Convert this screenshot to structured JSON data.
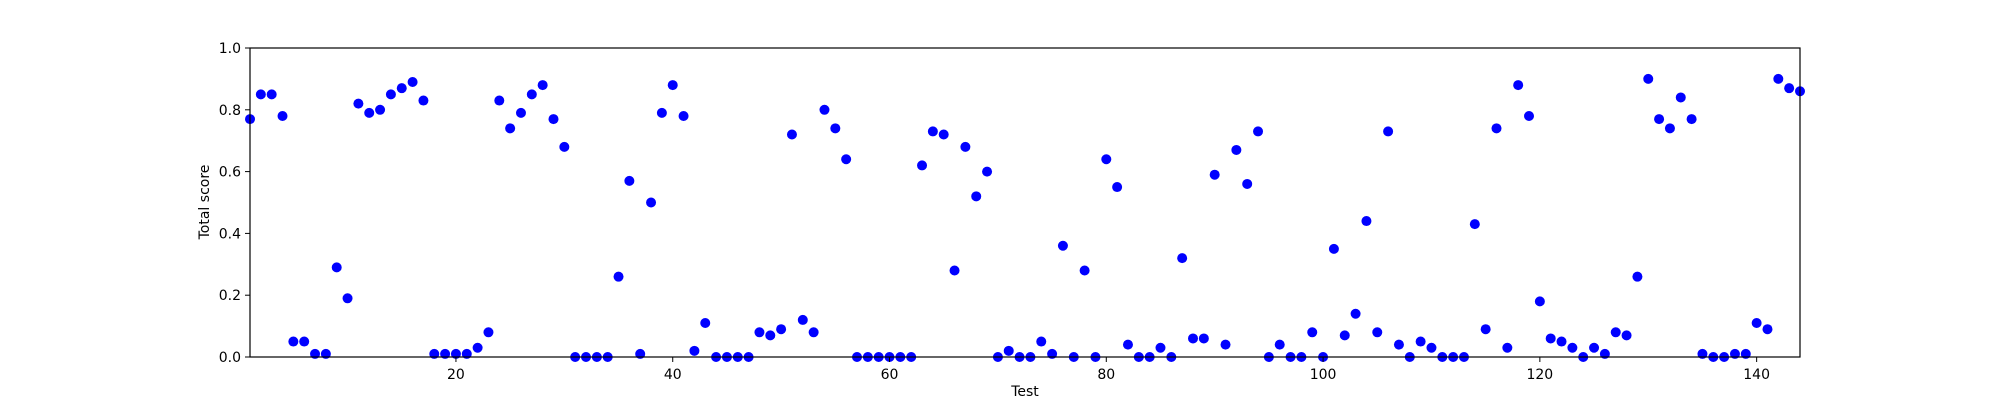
{
  "chart_data": {
    "type": "scatter",
    "title": "",
    "xlabel": "Test",
    "ylabel": "Total score",
    "xlim": [
      1,
      144
    ],
    "ylim": [
      0.0,
      1.0
    ],
    "xticks": [
      20,
      40,
      60,
      80,
      100,
      120,
      140
    ],
    "xtick_labels": [
      "20",
      "40",
      "60",
      "80",
      "100",
      "120",
      "140"
    ],
    "yticks": [
      0.0,
      0.2,
      0.4,
      0.6,
      0.8,
      1.0
    ],
    "ytick_labels": [
      "0.0",
      "0.2",
      "0.4",
      "0.6",
      "0.8",
      "1.0"
    ],
    "grid": false,
    "legend": false,
    "marker_color": "#0000ff",
    "series": [
      {
        "x": [
          1,
          2,
          3,
          4,
          5,
          6,
          7,
          8,
          9,
          10,
          11,
          12,
          13,
          14,
          15,
          16,
          17,
          18,
          19,
          20,
          21,
          22,
          23,
          24,
          25,
          26,
          27,
          28,
          29,
          30,
          31,
          32,
          33,
          34,
          35,
          36,
          37,
          38,
          39,
          40,
          41,
          42,
          43,
          44,
          45,
          46,
          47,
          48,
          49,
          50,
          51,
          52,
          53,
          54,
          55,
          56,
          57,
          58,
          59,
          60,
          61,
          62,
          63,
          64,
          65,
          66,
          67,
          68,
          69,
          70,
          71,
          72,
          73,
          74,
          75,
          76,
          77,
          78,
          79,
          80,
          81,
          82,
          83,
          84,
          85,
          86,
          87,
          88,
          89,
          90,
          91,
          92,
          93,
          94,
          95,
          96,
          97,
          98,
          99,
          100,
          101,
          102,
          103,
          104,
          105,
          106,
          107,
          108,
          109,
          110,
          111,
          112,
          113,
          114,
          115,
          116,
          117,
          118,
          119,
          120,
          121,
          122,
          123,
          124,
          125,
          126,
          127,
          128,
          129,
          130,
          131,
          132,
          133,
          134,
          135,
          136,
          137,
          138,
          139,
          140,
          141,
          142,
          143,
          144
        ],
        "y": [
          0.77,
          0.85,
          0.85,
          0.78,
          0.05,
          0.05,
          0.01,
          0.01,
          0.29,
          0.19,
          0.82,
          0.79,
          0.8,
          0.85,
          0.87,
          0.89,
          0.83,
          0.01,
          0.01,
          0.01,
          0.01,
          0.03,
          0.08,
          0.83,
          0.74,
          0.79,
          0.85,
          0.88,
          0.77,
          0.68,
          0.0,
          0.0,
          0.0,
          0.0,
          0.26,
          0.57,
          0.01,
          0.5,
          0.79,
          0.88,
          0.78,
          0.02,
          0.11,
          0.0,
          0.0,
          0.0,
          0.0,
          0.08,
          0.07,
          0.09,
          0.72,
          0.12,
          0.08,
          0.8,
          0.74,
          0.64,
          0.0,
          0.0,
          0.0,
          0.0,
          0.0,
          0.0,
          0.62,
          0.73,
          0.72,
          0.28,
          0.68,
          0.52,
          0.6,
          0.0,
          0.02,
          0.0,
          0.0,
          0.05,
          0.01,
          0.36,
          0.0,
          0.28,
          0.0,
          0.64,
          0.55,
          0.04,
          0.0,
          0.0,
          0.03,
          0.0,
          0.32,
          0.06,
          0.06,
          0.59,
          0.04,
          0.67,
          0.56,
          0.73,
          0.0,
          0.04,
          0.0,
          0.0,
          0.08,
          0.0,
          0.35,
          0.07,
          0.14,
          0.44,
          0.08,
          0.73,
          0.04,
          0.0,
          0.05,
          0.03,
          0.0,
          0.0,
          0.0,
          0.43,
          0.09,
          0.74,
          0.03,
          0.88,
          0.78,
          0.18,
          0.06,
          0.05,
          0.03,
          0.0,
          0.03,
          0.01,
          0.08,
          0.07,
          0.26,
          0.9,
          0.77,
          0.74,
          0.84,
          0.77,
          0.01,
          0.0,
          0.0,
          0.01,
          0.01,
          0.11,
          0.09,
          0.9,
          0.87,
          0.86
        ]
      }
    ]
  }
}
